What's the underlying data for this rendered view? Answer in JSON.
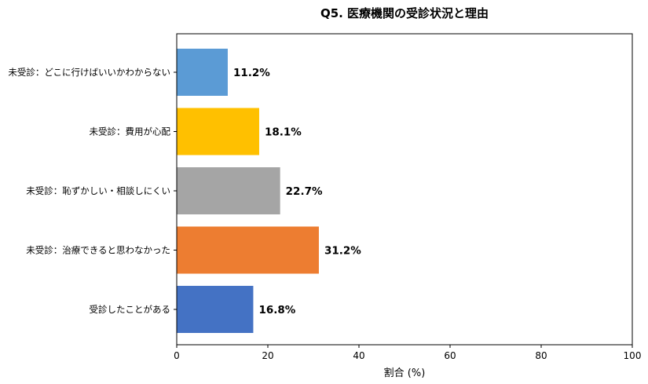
{
  "chart_data": {
    "type": "bar",
    "orientation": "horizontal",
    "title": "Q5. 医療機関の受診状況と理由",
    "xlabel": "割合 (%)",
    "ylabel": "",
    "xlim": [
      0,
      100
    ],
    "xticks": [
      0,
      20,
      40,
      60,
      80,
      100
    ],
    "grid": false,
    "categories": [
      "未受診：どこに行けばいいかわからない",
      "未受診：費用が心配",
      "未受診：恥ずかしい・相談しにくい",
      "未受診：治療できると思わなかった",
      "受診したことがある"
    ],
    "values": [
      11.2,
      18.1,
      22.7,
      31.2,
      16.8
    ],
    "value_labels": [
      "11.2%",
      "18.1%",
      "22.7%",
      "31.2%",
      "16.8%"
    ],
    "colors": [
      "#5b9bd5",
      "#ffc000",
      "#a5a5a5",
      "#ed7d31",
      "#4472c4"
    ]
  }
}
